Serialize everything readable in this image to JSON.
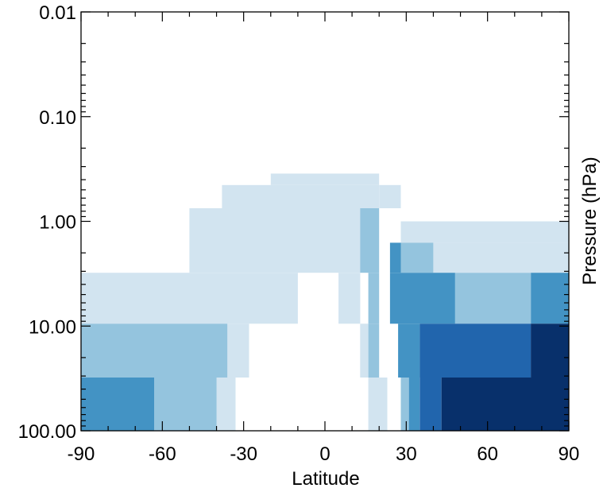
{
  "chart_data": {
    "type": "heatmap",
    "title": "",
    "xlabel": "Latitude",
    "ylabel": "Pressure (hPa)",
    "xlim": [
      -90,
      90
    ],
    "ylim": [
      100,
      0.01
    ],
    "y_scale": "log",
    "x_ticks": [
      -90,
      -60,
      -30,
      0,
      30,
      60,
      90
    ],
    "x_tick_labels": [
      "-90",
      "-60",
      "-30",
      "0",
      "30",
      "60",
      "90"
    ],
    "y_ticks": [
      0.01,
      0.1,
      1,
      10,
      100
    ],
    "y_tick_labels": [
      "0.01",
      "0.10",
      "1.00",
      "10.00",
      "100.00"
    ],
    "grid": false,
    "legend": "none",
    "palette": [
      "#d2e4f0",
      "#94c4de",
      "#4393c4",
      "#2165ad",
      "#08306b"
    ],
    "cells": [
      {
        "lat_min": -20,
        "lat_max": 20,
        "p_top": 0.35,
        "p_bottom": 0.45,
        "level": 0
      },
      {
        "lat_min": -38,
        "lat_max": 20,
        "p_top": 0.45,
        "p_bottom": 0.75,
        "level": 0
      },
      {
        "lat_min": 20,
        "lat_max": 28,
        "p_top": 0.45,
        "p_bottom": 0.75,
        "level": 0
      },
      {
        "lat_min": -50,
        "lat_max": 13,
        "p_top": 0.75,
        "p_bottom": 3.1,
        "level": 0
      },
      {
        "lat_min": -90,
        "lat_max": -10,
        "p_top": 3.1,
        "p_bottom": 9.5,
        "level": 0
      },
      {
        "lat_min": 5,
        "lat_max": 13,
        "p_top": 3.1,
        "p_bottom": 9.5,
        "level": 0
      },
      {
        "lat_min": 28,
        "lat_max": 90,
        "p_top": 1.0,
        "p_bottom": 1.6,
        "level": 0
      },
      {
        "lat_min": 40,
        "lat_max": 90,
        "p_top": 1.6,
        "p_bottom": 3.1,
        "level": 0
      },
      {
        "lat_min": -36,
        "lat_max": -28,
        "p_top": 9.5,
        "p_bottom": 31,
        "level": 0
      },
      {
        "lat_min": 13,
        "lat_max": 16,
        "p_top": 9.5,
        "p_bottom": 31,
        "level": 0
      },
      {
        "lat_min": -40,
        "lat_max": -33,
        "p_top": 31,
        "p_bottom": 100,
        "level": 0
      },
      {
        "lat_min": 16,
        "lat_max": 23,
        "p_top": 31,
        "p_bottom": 100,
        "level": 0
      },
      {
        "lat_min": 13,
        "lat_max": 20,
        "p_top": 0.75,
        "p_bottom": 3.1,
        "level": 1
      },
      {
        "lat_min": 16,
        "lat_max": 20,
        "p_top": 3.1,
        "p_bottom": 9.5,
        "level": 1
      },
      {
        "lat_min": 28,
        "lat_max": 40,
        "p_top": 1.6,
        "p_bottom": 3.1,
        "level": 1
      },
      {
        "lat_min": 48,
        "lat_max": 76,
        "p_top": 3.1,
        "p_bottom": 9.5,
        "level": 1
      },
      {
        "lat_min": -90,
        "lat_max": -36,
        "p_top": 9.5,
        "p_bottom": 31,
        "level": 1
      },
      {
        "lat_min": 16,
        "lat_max": 20,
        "p_top": 9.5,
        "p_bottom": 31,
        "level": 1
      },
      {
        "lat_min": -63,
        "lat_max": -40,
        "p_top": 31,
        "p_bottom": 100,
        "level": 1
      },
      {
        "lat_min": 28,
        "lat_max": 31,
        "p_top": 31,
        "p_bottom": 100,
        "level": 1
      },
      {
        "lat_min": 24,
        "lat_max": 28,
        "p_top": 1.6,
        "p_bottom": 3.1,
        "level": 2
      },
      {
        "lat_min": 24,
        "lat_max": 48,
        "p_top": 3.1,
        "p_bottom": 9.5,
        "level": 2
      },
      {
        "lat_min": 76,
        "lat_max": 90,
        "p_top": 3.1,
        "p_bottom": 9.5,
        "level": 2
      },
      {
        "lat_min": 27,
        "lat_max": 35,
        "p_top": 9.5,
        "p_bottom": 31,
        "level": 2
      },
      {
        "lat_min": -90,
        "lat_max": -63,
        "p_top": 31,
        "p_bottom": 100,
        "level": 2
      },
      {
        "lat_min": 31,
        "lat_max": 35,
        "p_top": 31,
        "p_bottom": 100,
        "level": 2
      },
      {
        "lat_min": 35,
        "lat_max": 76,
        "p_top": 9.5,
        "p_bottom": 31,
        "level": 3
      },
      {
        "lat_min": 35,
        "lat_max": 43,
        "p_top": 31,
        "p_bottom": 100,
        "level": 3
      },
      {
        "lat_min": 76,
        "lat_max": 90,
        "p_top": 9.5,
        "p_bottom": 31,
        "level": 4
      },
      {
        "lat_min": 43,
        "lat_max": 90,
        "p_top": 31,
        "p_bottom": 100,
        "level": 4
      }
    ]
  }
}
